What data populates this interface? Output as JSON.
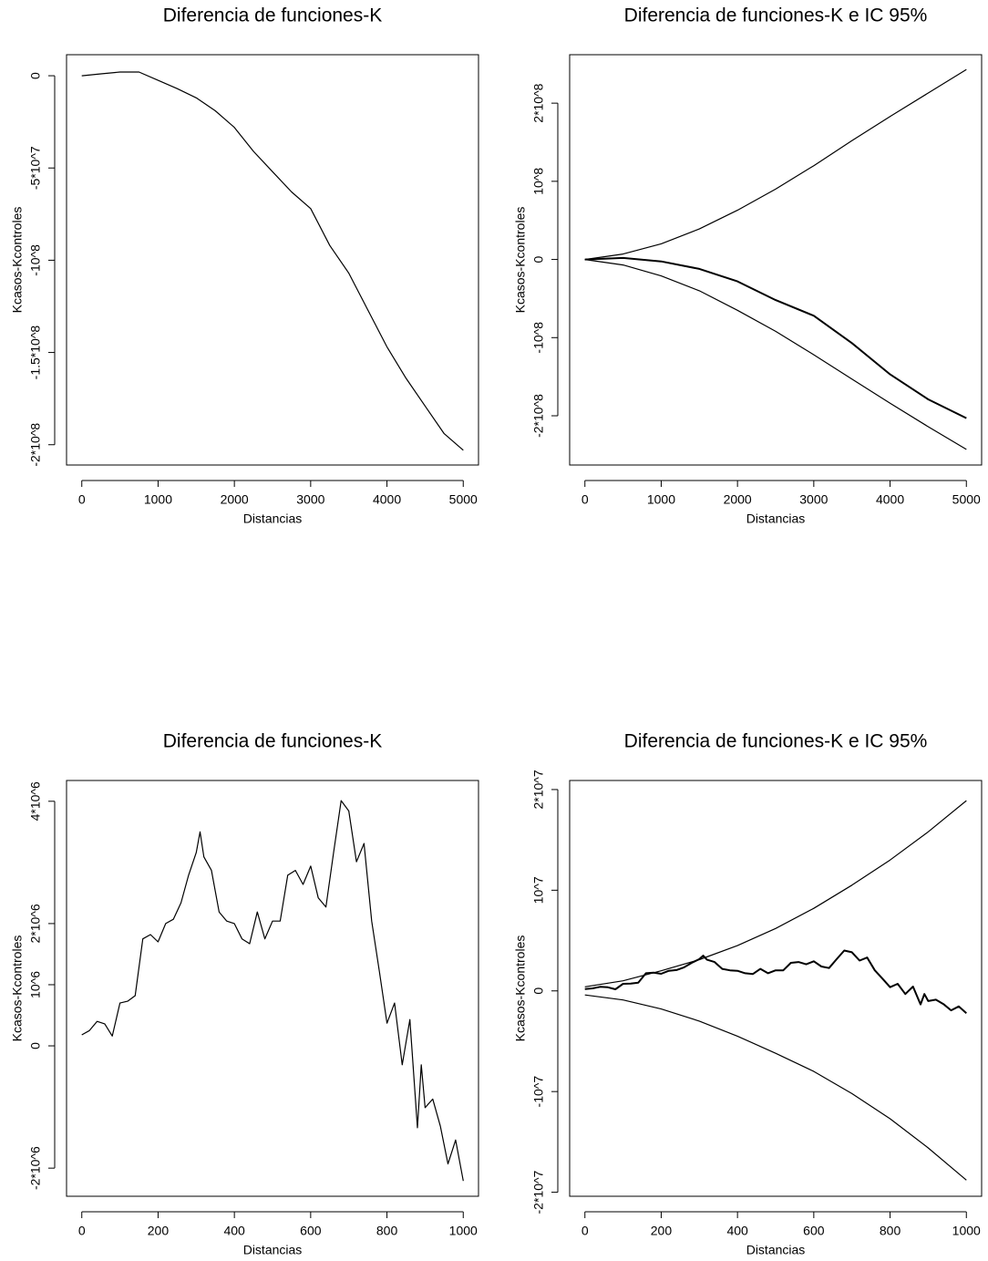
{
  "chart_data": [
    {
      "type": "line",
      "title": "Diferencia de funciones-K",
      "xlabel": "Distancias",
      "ylabel": "Kcasos-Kcontroles",
      "x": [
        0,
        250,
        500,
        750,
        1000,
        1250,
        1500,
        1750,
        2000,
        2250,
        2500,
        2750,
        3000,
        3250,
        3500,
        3750,
        4000,
        4250,
        4500,
        4750,
        5000
      ],
      "series": [
        {
          "color": "#000000",
          "values": [
            0,
            1000000,
            2000000,
            2000000,
            -2500000,
            -7000000,
            -12000000,
            -19000000,
            -28000000,
            -41000000,
            -52000000,
            -63000000,
            -72000000,
            -92000000,
            -107000000,
            -127000000,
            -147000000,
            -164000000,
            -179000000,
            -194000000,
            -203000000
          ]
        }
      ],
      "xlim": [
        -200,
        5200
      ],
      "ylim": [
        -211000000,
        11400000
      ],
      "xticks": [
        0,
        1000,
        2000,
        3000,
        4000,
        5000
      ],
      "yticks": [
        0,
        {
          "value": -50000000,
          "label": "-5*10^7"
        },
        {
          "value": -100000000,
          "label": "-10^8"
        },
        {
          "value": -150000000,
          "label": "-1.5*10^8"
        },
        {
          "value": -200000000,
          "label": "-2*10^8"
        }
      ]
    },
    {
      "type": "line",
      "title": "Diferencia de funciones-K e IC 95%",
      "xlabel": "Distancias",
      "ylabel": "Kcasos-Kcontroles",
      "x": [
        0,
        500,
        1000,
        1500,
        2000,
        2500,
        3000,
        3500,
        4000,
        4500,
        5000
      ],
      "series": [
        {
          "color": "#000000",
          "values": [
            0,
            7000000,
            20000000,
            39000000,
            63000000,
            90000000,
            120000000,
            152000000,
            183000000,
            213000000,
            243000000
          ]
        },
        {
          "color": "#000000",
          "values": [
            0,
            -7000000,
            -21000000,
            -40000000,
            -65000000,
            -92000000,
            -122000000,
            -153000000,
            -184000000,
            -214000000,
            -243000000
          ]
        },
        {
          "color": "#000000",
          "values": [
            0,
            2000000,
            -2500000,
            -12000000,
            -28000000,
            -52000000,
            -72000000,
            -107000000,
            -147000000,
            -179000000,
            -203000000
          ]
        }
      ],
      "xlim": [
        -200,
        5200
      ],
      "ylim": [
        -263000000,
        262000000
      ],
      "xticks": [
        0,
        1000,
        2000,
        3000,
        4000,
        5000
      ],
      "yticks": [
        {
          "value": -200000000,
          "label": "-2*10^8"
        },
        {
          "value": -100000000,
          "label": "-10^8"
        },
        0,
        {
          "value": 100000000,
          "label": "10^8"
        },
        {
          "value": 200000000,
          "label": "2*10^8"
        }
      ]
    },
    {
      "type": "line",
      "title": "Diferencia de funciones-K",
      "xlabel": "Distancias",
      "ylabel": "Kcasos-Kcontroles",
      "x": [
        0,
        20,
        40,
        60,
        80,
        100,
        120,
        140,
        160,
        180,
        200,
        220,
        240,
        260,
        280,
        300,
        310,
        320,
        340,
        360,
        380,
        400,
        420,
        440,
        460,
        480,
        500,
        520,
        540,
        560,
        580,
        600,
        620,
        640,
        660,
        680,
        700,
        720,
        740,
        760,
        780,
        800,
        820,
        840,
        860,
        880,
        890,
        900,
        920,
        940,
        960,
        980,
        1000
      ],
      "series": [
        {
          "color": "#000000",
          "values": [
            180000,
            250000,
            400000,
            360000,
            160000,
            700000,
            730000,
            820000,
            1750000,
            1820000,
            1700000,
            2000000,
            2070000,
            2340000,
            2790000,
            3160000,
            3500000,
            3090000,
            2870000,
            2190000,
            2040000,
            2000000,
            1750000,
            1670000,
            2190000,
            1750000,
            2040000,
            2040000,
            2790000,
            2870000,
            2640000,
            2940000,
            2420000,
            2270000,
            3160000,
            4010000,
            3840000,
            3010000,
            3310000,
            2040000,
            1220000,
            370000,
            700000,
            -310000,
            430000,
            -1340000,
            -310000,
            -1010000,
            -870000,
            -1310000,
            -1930000,
            -1540000,
            -2210000
          ]
        }
      ],
      "xlim": [
        -40,
        1040
      ],
      "ylim": [
        -2460000,
        4340000
      ],
      "xticks": [
        0,
        200,
        400,
        600,
        800,
        1000
      ],
      "yticks": [
        {
          "value": -2000000,
          "label": "-2*10^6"
        },
        0,
        {
          "value": 1000000,
          "label": "10^6"
        },
        {
          "value": 2000000,
          "label": "2*10^6"
        },
        {
          "value": 4000000,
          "label": "4*10^6"
        }
      ]
    },
    {
      "type": "line",
      "title": "Diferencia de funciones-K e IC 95%",
      "xlabel": "Distancias",
      "ylabel": "Kcasos-Kcontroles",
      "x": [
        0,
        20,
        40,
        60,
        80,
        100,
        120,
        140,
        160,
        180,
        200,
        220,
        240,
        260,
        280,
        300,
        310,
        320,
        340,
        360,
        380,
        400,
        420,
        440,
        460,
        480,
        500,
        520,
        540,
        560,
        580,
        600,
        620,
        640,
        660,
        680,
        700,
        720,
        740,
        760,
        780,
        800,
        820,
        840,
        860,
        880,
        890,
        900,
        920,
        940,
        960,
        980,
        1000
      ],
      "series": [
        {
          "color": "#000000",
          "x": [
            0,
            100,
            200,
            300,
            400,
            500,
            600,
            700,
            800,
            900,
            1000
          ],
          "values": [
            400000,
            1000000,
            2000000,
            3100000,
            4500000,
            6200000,
            8200000,
            10500000,
            13000000,
            15800000,
            18900000
          ]
        },
        {
          "color": "#000000",
          "x": [
            0,
            100,
            200,
            300,
            400,
            500,
            600,
            700,
            800,
            900,
            1000
          ],
          "values": [
            -400000,
            -900000,
            -1800000,
            -3000000,
            -4500000,
            -6200000,
            -8000000,
            -10200000,
            -12700000,
            -15600000,
            -18800000
          ]
        },
        {
          "color": "#000000",
          "values": [
            180000,
            250000,
            400000,
            360000,
            160000,
            700000,
            730000,
            820000,
            1750000,
            1820000,
            1700000,
            2000000,
            2070000,
            2340000,
            2790000,
            3160000,
            3500000,
            3090000,
            2870000,
            2190000,
            2040000,
            2000000,
            1750000,
            1670000,
            2190000,
            1750000,
            2040000,
            2040000,
            2790000,
            2870000,
            2640000,
            2940000,
            2420000,
            2270000,
            3160000,
            4010000,
            3840000,
            3010000,
            3310000,
            2040000,
            1220000,
            370000,
            700000,
            -310000,
            430000,
            -1340000,
            -310000,
            -1010000,
            -870000,
            -1310000,
            -1930000,
            -1540000,
            -2210000
          ]
        }
      ],
      "xlim": [
        -40,
        1040
      ],
      "ylim": [
        -20400000,
        20900000
      ],
      "xticks": [
        0,
        200,
        400,
        600,
        800,
        1000
      ],
      "yticks": [
        {
          "value": -20000000,
          "label": "-2*10^7"
        },
        {
          "value": -10000000,
          "label": "-10^7"
        },
        0,
        {
          "value": 10000000,
          "label": "10^7"
        },
        {
          "value": 20000000,
          "label": "2*10^7"
        }
      ]
    }
  ]
}
